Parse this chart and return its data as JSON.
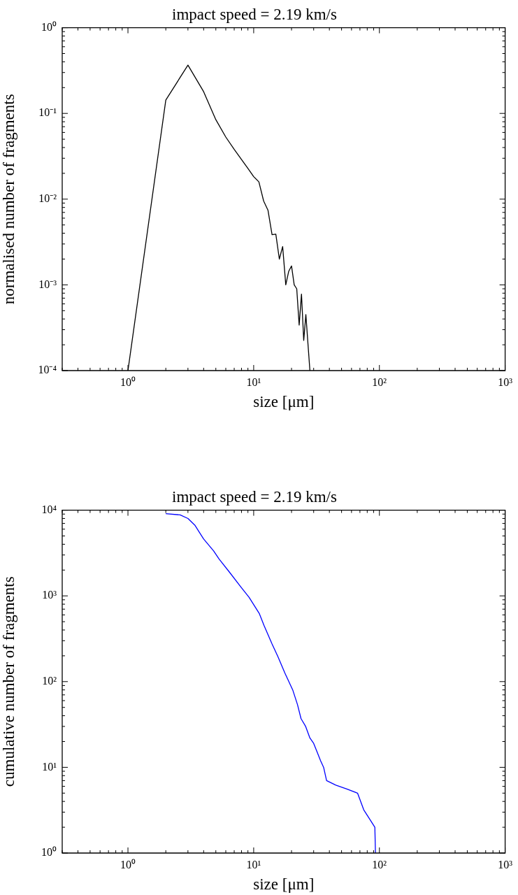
{
  "chart_data": [
    {
      "type": "line",
      "title": "impact speed = 2.19 km/s",
      "xlabel": "size [μm]",
      "ylabel": "normalised number of fragments",
      "log": "xy",
      "grid": false,
      "legend": false,
      "series": [
        {
          "color": "#000000",
          "x": [
            1,
            2,
            3,
            4,
            5,
            6,
            7,
            8,
            9,
            10,
            11,
            12,
            13,
            14,
            15,
            16,
            17,
            18,
            19,
            20,
            21,
            22,
            23,
            24,
            25,
            26,
            28
          ],
          "values": [
            0.0001,
            0.143,
            0.366,
            0.179,
            0.0845,
            0.053,
            0.038,
            0.029,
            0.0228,
            0.0183,
            0.0159,
            0.0095,
            0.0074,
            0.00385,
            0.0039,
            0.002,
            0.0028,
            0.001,
            0.00144,
            0.00166,
            0.001,
            0.0009,
            0.00034,
            0.00078,
            0.000225,
            0.00045,
            0.0001
          ]
        }
      ],
      "xlim": [
        0.3,
        1000
      ],
      "xticks": [
        {
          "value": 0.3,
          "label": null
        },
        {
          "value": 0.4,
          "label": null
        },
        {
          "value": 0.5,
          "label": null
        },
        {
          "value": 0.6,
          "label": null
        },
        {
          "value": 0.7,
          "label": null
        },
        {
          "value": 0.8,
          "label": null
        },
        {
          "value": 0.9,
          "label": null
        },
        {
          "value": 1,
          "label": "10⁰"
        },
        {
          "value": 2,
          "label": null
        },
        {
          "value": 3,
          "label": null
        },
        {
          "value": 4,
          "label": null
        },
        {
          "value": 5,
          "label": null
        },
        {
          "value": 6,
          "label": null
        },
        {
          "value": 7,
          "label": null
        },
        {
          "value": 8,
          "label": null
        },
        {
          "value": 9,
          "label": null
        },
        {
          "value": 10,
          "label": "10¹"
        },
        {
          "value": 20,
          "label": null
        },
        {
          "value": 30,
          "label": null
        },
        {
          "value": 40,
          "label": null
        },
        {
          "value": 50,
          "label": null
        },
        {
          "value": 60,
          "label": null
        },
        {
          "value": 70,
          "label": null
        },
        {
          "value": 80,
          "label": null
        },
        {
          "value": 90,
          "label": null
        },
        {
          "value": 100,
          "label": "10²"
        },
        {
          "value": 200,
          "label": null
        },
        {
          "value": 300,
          "label": null
        },
        {
          "value": 400,
          "label": null
        },
        {
          "value": 500,
          "label": null
        },
        {
          "value": 600,
          "label": null
        },
        {
          "value": 700,
          "label": null
        },
        {
          "value": 800,
          "label": null
        },
        {
          "value": 900,
          "label": null
        },
        {
          "value": 1000,
          "label": "10³"
        }
      ],
      "ylim": [
        0.0001,
        1
      ],
      "yticks": [
        {
          "value": 0.0001,
          "label": "10⁻⁴"
        },
        {
          "value": 0.0002,
          "label": null
        },
        {
          "value": 0.0003,
          "label": null
        },
        {
          "value": 0.0004,
          "label": null
        },
        {
          "value": 0.0005,
          "label": null
        },
        {
          "value": 0.0006,
          "label": null
        },
        {
          "value": 0.0007,
          "label": null
        },
        {
          "value": 0.0008,
          "label": null
        },
        {
          "value": 0.0009,
          "label": null
        },
        {
          "value": 0.001,
          "label": "10⁻³"
        },
        {
          "value": 0.002,
          "label": null
        },
        {
          "value": 0.003,
          "label": null
        },
        {
          "value": 0.004,
          "label": null
        },
        {
          "value": 0.005,
          "label": null
        },
        {
          "value": 0.006,
          "label": null
        },
        {
          "value": 0.007,
          "label": null
        },
        {
          "value": 0.008,
          "label": null
        },
        {
          "value": 0.009,
          "label": null
        },
        {
          "value": 0.01,
          "label": "10⁻²"
        },
        {
          "value": 0.02,
          "label": null
        },
        {
          "value": 0.03,
          "label": null
        },
        {
          "value": 0.04,
          "label": null
        },
        {
          "value": 0.05,
          "label": null
        },
        {
          "value": 0.06,
          "label": null
        },
        {
          "value": 0.07,
          "label": null
        },
        {
          "value": 0.08,
          "label": null
        },
        {
          "value": 0.09,
          "label": null
        },
        {
          "value": 0.1,
          "label": "10⁻¹"
        },
        {
          "value": 0.2,
          "label": null
        },
        {
          "value": 0.3,
          "label": null
        },
        {
          "value": 0.4,
          "label": null
        },
        {
          "value": 0.5,
          "label": null
        },
        {
          "value": 0.6,
          "label": null
        },
        {
          "value": 0.7,
          "label": null
        },
        {
          "value": 0.8,
          "label": null
        },
        {
          "value": 0.9,
          "label": null
        },
        {
          "value": 1,
          "label": "10⁰"
        }
      ]
    },
    {
      "type": "line",
      "title": "impact speed = 2.19 km/s",
      "xlabel": "size [μm]",
      "ylabel": "cumulative number of fragments",
      "log": "xy",
      "grid": false,
      "legend": false,
      "series": [
        {
          "color": "#0000ff",
          "x": [
            2,
            2.6,
            3,
            3.4,
            4,
            4.8,
            5.3,
            6.4,
            7.9,
            9.2,
            11.1,
            12.1,
            14,
            15.6,
            17.7,
            20.5,
            22.3,
            23.8,
            25.9,
            28,
            30,
            32,
            34,
            36,
            38,
            45,
            55,
            67,
            75,
            85,
            92,
            93
          ],
          "values": [
            9100,
            8800,
            8000,
            6700,
            4600,
            3350,
            2700,
            1900,
            1270,
            960,
            620,
            450,
            275,
            195,
            126,
            79,
            54,
            37,
            30,
            22,
            19,
            15,
            12,
            10,
            7,
            6.2,
            5.6,
            5,
            3.2,
            2.4,
            2,
            1
          ]
        }
      ],
      "xlim": [
        0.3,
        1000
      ],
      "xticks": [
        {
          "value": 0.3,
          "label": null
        },
        {
          "value": 0.4,
          "label": null
        },
        {
          "value": 0.5,
          "label": null
        },
        {
          "value": 0.6,
          "label": null
        },
        {
          "value": 0.7,
          "label": null
        },
        {
          "value": 0.8,
          "label": null
        },
        {
          "value": 0.9,
          "label": null
        },
        {
          "value": 1,
          "label": "10⁰"
        },
        {
          "value": 2,
          "label": null
        },
        {
          "value": 3,
          "label": null
        },
        {
          "value": 4,
          "label": null
        },
        {
          "value": 5,
          "label": null
        },
        {
          "value": 6,
          "label": null
        },
        {
          "value": 7,
          "label": null
        },
        {
          "value": 8,
          "label": null
        },
        {
          "value": 9,
          "label": null
        },
        {
          "value": 10,
          "label": "10¹"
        },
        {
          "value": 20,
          "label": null
        },
        {
          "value": 30,
          "label": null
        },
        {
          "value": 40,
          "label": null
        },
        {
          "value": 50,
          "label": null
        },
        {
          "value": 60,
          "label": null
        },
        {
          "value": 70,
          "label": null
        },
        {
          "value": 80,
          "label": null
        },
        {
          "value": 90,
          "label": null
        },
        {
          "value": 100,
          "label": "10²"
        },
        {
          "value": 200,
          "label": null
        },
        {
          "value": 300,
          "label": null
        },
        {
          "value": 400,
          "label": null
        },
        {
          "value": 500,
          "label": null
        },
        {
          "value": 600,
          "label": null
        },
        {
          "value": 700,
          "label": null
        },
        {
          "value": 800,
          "label": null
        },
        {
          "value": 900,
          "label": null
        },
        {
          "value": 1000,
          "label": "10³"
        }
      ],
      "ylim": [
        1,
        10000
      ],
      "yticks": [
        {
          "value": 1,
          "label": "10⁰"
        },
        {
          "value": 2,
          "label": null
        },
        {
          "value": 3,
          "label": null
        },
        {
          "value": 4,
          "label": null
        },
        {
          "value": 5,
          "label": null
        },
        {
          "value": 6,
          "label": null
        },
        {
          "value": 7,
          "label": null
        },
        {
          "value": 8,
          "label": null
        },
        {
          "value": 9,
          "label": null
        },
        {
          "value": 10,
          "label": "10¹"
        },
        {
          "value": 20,
          "label": null
        },
        {
          "value": 30,
          "label": null
        },
        {
          "value": 40,
          "label": null
        },
        {
          "value": 50,
          "label": null
        },
        {
          "value": 60,
          "label": null
        },
        {
          "value": 70,
          "label": null
        },
        {
          "value": 80,
          "label": null
        },
        {
          "value": 90,
          "label": null
        },
        {
          "value": 100,
          "label": "10²"
        },
        {
          "value": 200,
          "label": null
        },
        {
          "value": 300,
          "label": null
        },
        {
          "value": 400,
          "label": null
        },
        {
          "value": 500,
          "label": null
        },
        {
          "value": 600,
          "label": null
        },
        {
          "value": 700,
          "label": null
        },
        {
          "value": 800,
          "label": null
        },
        {
          "value": 900,
          "label": null
        },
        {
          "value": 1000,
          "label": "10³"
        },
        {
          "value": 2000,
          "label": null
        },
        {
          "value": 3000,
          "label": null
        },
        {
          "value": 4000,
          "label": null
        },
        {
          "value": 5000,
          "label": null
        },
        {
          "value": 6000,
          "label": null
        },
        {
          "value": 7000,
          "label": null
        },
        {
          "value": 8000,
          "label": null
        },
        {
          "value": 9000,
          "label": null
        },
        {
          "value": 10000,
          "label": "10⁴"
        }
      ]
    }
  ]
}
